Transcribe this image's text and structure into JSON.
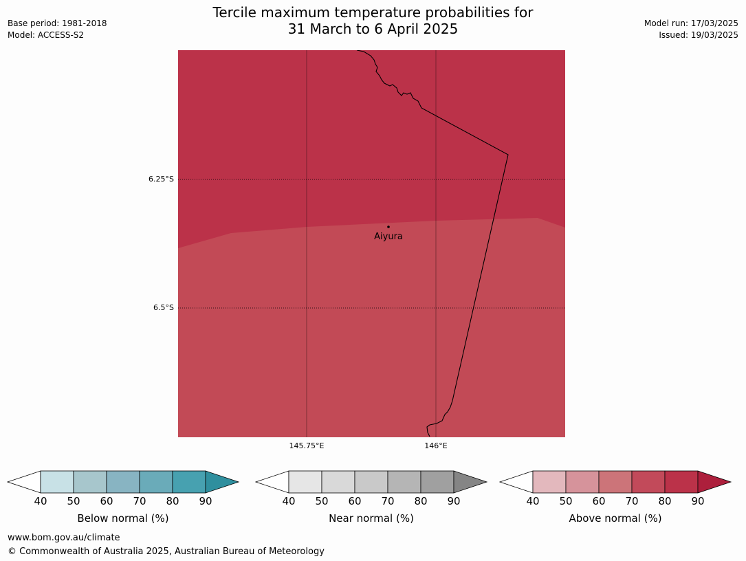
{
  "title": {
    "line1": "Tercile maximum temperature probabilities for",
    "line2": "31 March to 6 April 2025"
  },
  "meta_left": {
    "base_period": "Base period: 1981-2018",
    "model": "Model: ACCESS-S2"
  },
  "meta_right": {
    "model_run": "Model run: 17/03/2025",
    "issued": "Issued: 19/03/2025"
  },
  "map": {
    "place_label": "Aiyura",
    "lat_labels": [
      "6.25°S",
      "6.5°S"
    ],
    "lon_labels": [
      "145.75°E",
      "146°E"
    ],
    "fill_colors": {
      "above_80_90": "#bb3249",
      "above_70_80": "#c24a56"
    }
  },
  "legends": [
    {
      "label": "Below normal (%)",
      "ticks": [
        "40",
        "50",
        "60",
        "70",
        "80",
        "90"
      ],
      "colors": [
        "#ffffff",
        "#c8e1e6",
        "#a7c6cc",
        "#88b4c2",
        "#6aabb9",
        "#47a1b0",
        "#2f8f9e"
      ]
    },
    {
      "label": "Near normal (%)",
      "ticks": [
        "40",
        "50",
        "60",
        "70",
        "80",
        "90"
      ],
      "colors": [
        "#ffffff",
        "#e6e6e6",
        "#d9d9d9",
        "#c9c9c9",
        "#b5b5b5",
        "#a0a0a0",
        "#858585"
      ]
    },
    {
      "label": "Above normal (%)",
      "ticks": [
        "40",
        "50",
        "60",
        "70",
        "80",
        "90"
      ],
      "colors": [
        "#ffffff",
        "#e3b8bd",
        "#d6939b",
        "#cc7479",
        "#c24a5a",
        "#bb3249",
        "#ad1f3c"
      ]
    }
  ],
  "footer": {
    "url": "www.bom.gov.au/climate",
    "copyright": "© Commonwealth of Australia 2025, Australian Bureau of Meteorology"
  }
}
